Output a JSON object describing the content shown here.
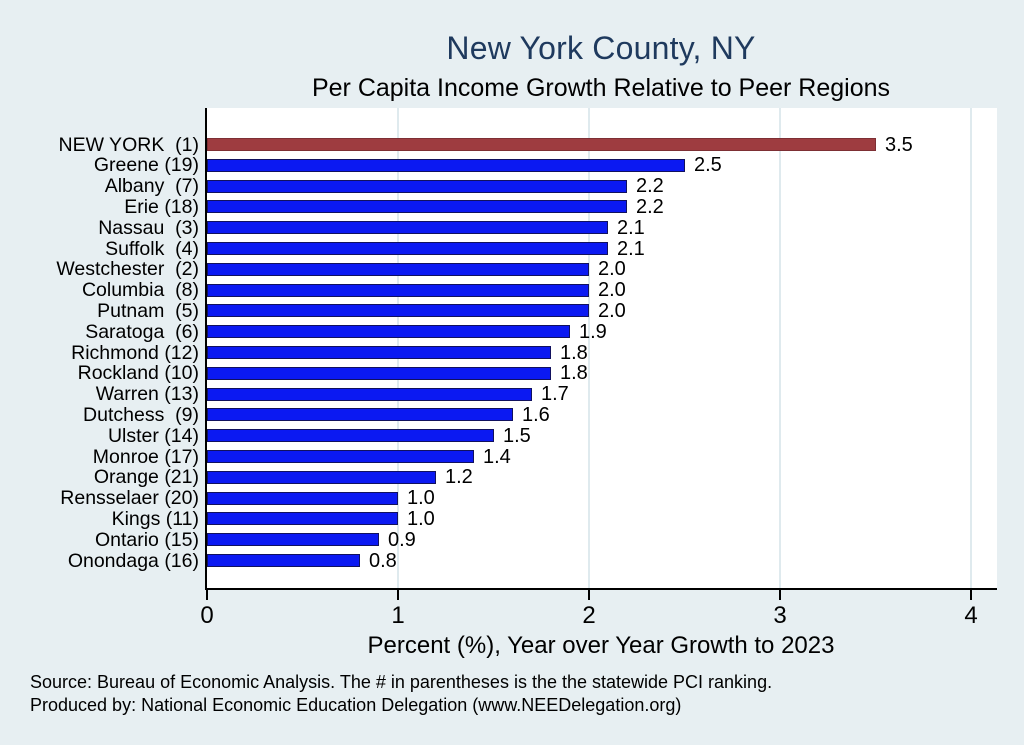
{
  "title": "New York County, NY",
  "subtitle": "Per Capita Income Growth Relative to Peer Regions",
  "chart_data": {
    "type": "bar",
    "orientation": "horizontal",
    "title": "New York County, NY",
    "subtitle": "Per Capita Income Growth Relative to Peer Regions",
    "xlabel": "Percent (%), Year over Year Growth to 2023",
    "ylabel": "",
    "xlim": [
      0,
      4.14
    ],
    "x_ticks": [
      "0",
      "1",
      "2",
      "3",
      "4"
    ],
    "grid": "vertical-light",
    "legend": "none",
    "categories": [
      "NEW YORK  (1)",
      "Greene (19)",
      "Albany  (7)",
      "Erie (18)",
      "Nassau  (3)",
      "Suffolk  (4)",
      "Westchester  (2)",
      "Columbia  (8)",
      "Putnam  (5)",
      "Saratoga  (6)",
      "Richmond (12)",
      "Rockland (10)",
      "Warren (13)",
      "Dutchess  (9)",
      "Ulster (14)",
      "Monroe (17)",
      "Orange (21)",
      "Rensselaer (20)",
      "Kings (11)",
      "Ontario (15)",
      "Onondaga (16)"
    ],
    "values": [
      3.5,
      2.5,
      2.2,
      2.2,
      2.1,
      2.1,
      2.0,
      2.0,
      2.0,
      1.9,
      1.8,
      1.8,
      1.7,
      1.6,
      1.5,
      1.4,
      1.2,
      1.0,
      1.0,
      0.9,
      0.8
    ],
    "value_label_decimals": 1,
    "highlight_index": 0,
    "colors": {
      "bar_fill": "#0b19f2",
      "bar_outline": "#11115e",
      "highlight_fill": "#9e3c40",
      "highlight_outline": "#7d2f34",
      "gridline": "#dfeaee",
      "axis": "#000000",
      "title": "#1f3a5e",
      "background": "#e7eff2",
      "plot_background": "#ffffff"
    }
  },
  "notes": {
    "source": "Source: Bureau of Economic Analysis. The # in parentheses is the the statewide PCI ranking.",
    "produced_by": "Produced by: National Economic Education Delegation (www.NEEDelegation.org)"
  }
}
